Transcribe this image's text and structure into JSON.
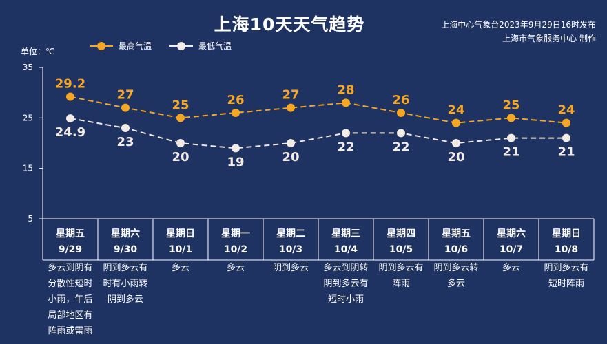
{
  "header": {
    "title": "上海10天天气趋势",
    "publish_line1": "上海中心气象台2023年9月29日16时发布",
    "publish_line2": "上海市气象服务中心 制作"
  },
  "unit_label": "单位：℃",
  "legend": {
    "high": "最高气温",
    "low": "最低气温"
  },
  "colors": {
    "background": "#1f3363",
    "high": "#f5a623",
    "low": "#f3ece6",
    "grid": "#ffffff"
  },
  "chart_data": {
    "type": "line",
    "title": "上海10天天气趋势",
    "ylabel": "单位：℃",
    "ylim": [
      5,
      35
    ],
    "yticks": [
      5,
      15,
      25,
      35
    ],
    "categories": [
      "星期五 9/29",
      "星期六 9/30",
      "星期日 10/1",
      "星期一 10/2",
      "星期二 10/3",
      "星期三 10/4",
      "星期四 10/5",
      "星期五 10/6",
      "星期六 10/7",
      "星期日 10/8"
    ],
    "series": [
      {
        "name": "最高气温",
        "values": [
          29.2,
          27,
          25,
          26,
          27,
          28,
          26,
          24,
          25,
          24
        ],
        "labels": [
          "29.2",
          "27",
          "25",
          "26",
          "27",
          "28",
          "26",
          "24",
          "25",
          "24"
        ]
      },
      {
        "name": "最低气温",
        "values": [
          24.9,
          23,
          20,
          19,
          20,
          22,
          22,
          20,
          21,
          21
        ],
        "labels": [
          "24.9",
          "23",
          "20",
          "19",
          "20",
          "22",
          "22",
          "20",
          "21",
          "21"
        ]
      }
    ]
  },
  "days": [
    {
      "weekday": "星期五",
      "date": "9/29",
      "desc": "多云到阴有分散性短时小雨，午后局部地区有阵雨或雷雨"
    },
    {
      "weekday": "星期六",
      "date": "9/30",
      "desc": "阴到多云有时有小雨转阴到多云"
    },
    {
      "weekday": "星期日",
      "date": "10/1",
      "desc": "多云"
    },
    {
      "weekday": "星期一",
      "date": "10/2",
      "desc": "多云"
    },
    {
      "weekday": "星期二",
      "date": "10/3",
      "desc": "阴到多云"
    },
    {
      "weekday": "星期三",
      "date": "10/4",
      "desc": "多云到阴转阴到多云有短时小雨"
    },
    {
      "weekday": "星期四",
      "date": "10/5",
      "desc": "阴到多云有阵雨"
    },
    {
      "weekday": "星期五",
      "date": "10/6",
      "desc": "阴到多云转多云"
    },
    {
      "weekday": "星期六",
      "date": "10/7",
      "desc": "多云"
    },
    {
      "weekday": "星期日",
      "date": "10/8",
      "desc": "阴到多云有短时阵雨"
    }
  ]
}
